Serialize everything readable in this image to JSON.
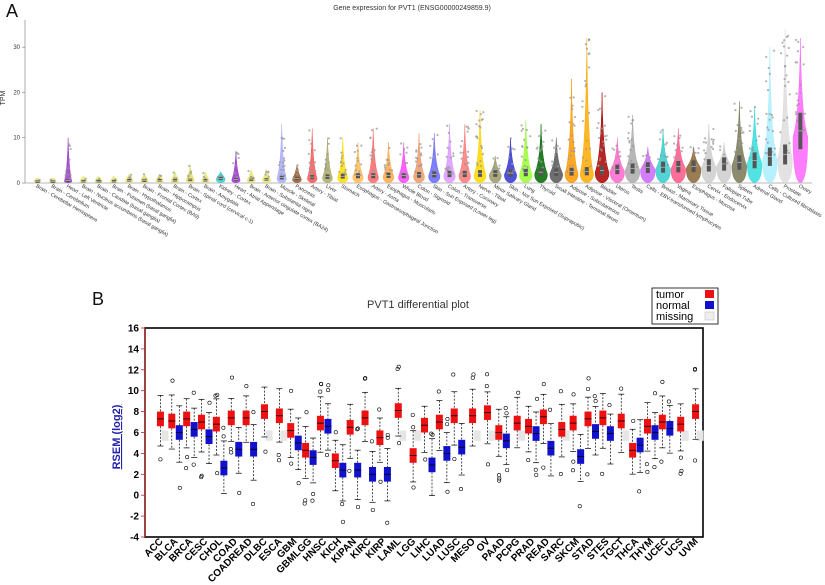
{
  "panel_labels": {
    "a": "A",
    "b": "B"
  },
  "chart_data": [
    {
      "type": "violin",
      "title": "Gene expression for PVT1 (ENSG00000249859.9)",
      "ylabel": "TPM",
      "ylim": [
        0,
        36
      ],
      "yticks": [
        0,
        10,
        20,
        30
      ],
      "categories": [
        "Brain - Cerebellar Hemisphere",
        "Brain - Cerebellum",
        "Heart - Left Ventricle",
        "Brain - Nucleus accumbens (basal ganglia)",
        "Brain - Caudate (basal ganglia)",
        "Brain - Putamen (basal ganglia)",
        "Brain - Hypothalamus",
        "Brain - Frontal Cortex (BA9)",
        "Brain - Hippocampus",
        "Brain - Cortex",
        "Brain - Spinal cord (cervical c-1)",
        "Brain - Amygdala",
        "Kidney - Cortex",
        "Heart - Atrial Appendage",
        "Brain - Anterior cingulate cortex (BA24)",
        "Brain - Substantia nigra",
        "Muscle - Skeletal",
        "Pancreas",
        "Artery - Tibial",
        "Liver",
        "Stomach",
        "Esophagus - Gastroesophageal Junction",
        "Artery - Aorta",
        "Esophagus - Muscularis",
        "Whole Blood",
        "Colon - Sigmoid",
        "Skin - Sun Exposed (Lower leg)",
        "Colon - Transverse",
        "Artery - Coronary",
        "Nerve - Tibial",
        "Minor Salivary Gland",
        "Skin - Not Sun Exposed (Suprapubic)",
        "Lung",
        "Thyroid",
        "Small Intestine - Terminal Ileum",
        "Adipose - Subcutaneous",
        "Adipose - Visceral (Omentum)",
        "Bladder",
        "Uterus",
        "Testis",
        "Cells - EBV-transformed lymphocytes",
        "Breast - Mammary Tissue",
        "Vagina",
        "Esophagus - Mucosa",
        "Cervix - Endocervix",
        "Fallopian Tube",
        "Spleen",
        "Adrenal Gland",
        "Cells - Cultured fibroblasts",
        "Prostate",
        "Ovary"
      ],
      "medians": [
        0.3,
        0.3,
        0.5,
        0.4,
        0.4,
        0.4,
        0.6,
        0.5,
        0.6,
        0.6,
        0.7,
        0.6,
        1.0,
        0.8,
        0.7,
        0.8,
        1.2,
        1.0,
        1.3,
        1.4,
        1.5,
        1.6,
        1.6,
        1.7,
        1.6,
        1.8,
        1.9,
        2.0,
        2.0,
        2.1,
        2.1,
        2.2,
        2.3,
        2.4,
        2.4,
        2.5,
        2.6,
        2.8,
        3.0,
        3.2,
        3.4,
        3.5,
        3.6,
        3.7,
        3.9,
        4.2,
        4.5,
        5.0,
        5.8,
        6.3,
        11.5
      ],
      "maxima": [
        1,
        1,
        10,
        1.5,
        1.5,
        1.5,
        2,
        2,
        2,
        2.5,
        4,
        2.5,
        2.5,
        7,
        3,
        3,
        13,
        4,
        12,
        10,
        10,
        9,
        12,
        9,
        9,
        11,
        11,
        13,
        13,
        16,
        6,
        10,
        14,
        13,
        10,
        23,
        32,
        20,
        10,
        15,
        8,
        12,
        12,
        8,
        13,
        9,
        18,
        17,
        30,
        34,
        32
      ],
      "colors": [
        "#e8e86a",
        "#e0e060",
        "#9933cc",
        "#e8e870",
        "#e4e468",
        "#e6e66a",
        "#e8e86c",
        "#e2e262",
        "#e6e66c",
        "#e4e468",
        "#e0e05c",
        "#e8e870",
        "#33cccc",
        "#9933cc",
        "#e4e466",
        "#e6e66a",
        "#aaaaff",
        "#995522",
        "#ff5555",
        "#aaaa66",
        "#ffdd00",
        "#ffbb55",
        "#ff6666",
        "#ffaa44",
        "#ff44ff",
        "#ee9966",
        "#6666ff",
        "#dd99ff",
        "#ff7777",
        "#ffd700",
        "#999966",
        "#3333cc",
        "#99ff33",
        "#006600",
        "#555555",
        "#ff9900",
        "#ffaa00",
        "#aa0000",
        "#ff66cc",
        "#aaaaaa",
        "#cc66ff",
        "#33cccc",
        "#ff5588",
        "#886633",
        "#cccccc",
        "#cccccc",
        "#777755",
        "#33dddd",
        "#aaeeff",
        "#dddddd",
        "#ff66ff"
      ]
    },
    {
      "type": "box",
      "title": "PVT1 differential plot",
      "ylabel": "RSEM (log2)",
      "ylim": [
        -4,
        16
      ],
      "yticks": [
        -4,
        -2,
        0,
        2,
        4,
        6,
        8,
        10,
        12,
        14,
        16
      ],
      "legend": [
        "tumor",
        "normal",
        "missing"
      ],
      "legend_colors": {
        "tumor": "#ee1111",
        "normal": "#1111cc",
        "missing": "#eeeeee"
      },
      "categories": [
        "ACC",
        "BLCA",
        "BRCA",
        "CESC",
        "CHOL",
        "COAD",
        "COADREAD",
        "DLBC",
        "ESCA",
        "GBM",
        "GBMLGG",
        "HNSC",
        "KICH",
        "KIPAN",
        "KIRC",
        "KIRP",
        "LAML",
        "LGG",
        "LIHC",
        "LUAD",
        "LUSC",
        "MESO",
        "OV",
        "PAAD",
        "PCPG",
        "PRAD",
        "READ",
        "SARC",
        "SKCM",
        "STAD",
        "STES",
        "TGCT",
        "THCA",
        "THYM",
        "UCEC",
        "UCS",
        "UVM"
      ],
      "tumor_median": [
        7.3,
        7.1,
        7.3,
        7.0,
        6.8,
        7.4,
        7.4,
        8.0,
        7.6,
        6.2,
        4.3,
        6.9,
        3.3,
        6.5,
        7.4,
        5.5,
        8.1,
        3.8,
        6.7,
        7.0,
        7.6,
        7.6,
        7.9,
        6.0,
        6.9,
        6.6,
        7.5,
        6.3,
        6.9,
        7.3,
        7.4,
        7.1,
        4.3,
        6.6,
        7.0,
        6.8,
        8.0
      ],
      "normal_median": [
        null,
        6.0,
        6.3,
        5.6,
        2.6,
        4.4,
        4.4,
        null,
        null,
        5.0,
        3.6,
        6.6,
        2.4,
        2.4,
        2.0,
        2.0,
        null,
        null,
        2.9,
        4.0,
        4.6,
        null,
        null,
        5.2,
        null,
        5.9,
        4.5,
        null,
        3.7,
        6.1,
        5.9,
        null,
        4.8,
        6.0,
        6.4,
        null,
        null
      ],
      "missing": [
        true,
        false,
        false,
        false,
        false,
        false,
        false,
        true,
        true,
        false,
        false,
        false,
        false,
        false,
        false,
        false,
        true,
        true,
        false,
        false,
        false,
        true,
        true,
        false,
        true,
        false,
        false,
        true,
        false,
        false,
        false,
        true,
        false,
        false,
        false,
        true,
        true
      ]
    }
  ]
}
